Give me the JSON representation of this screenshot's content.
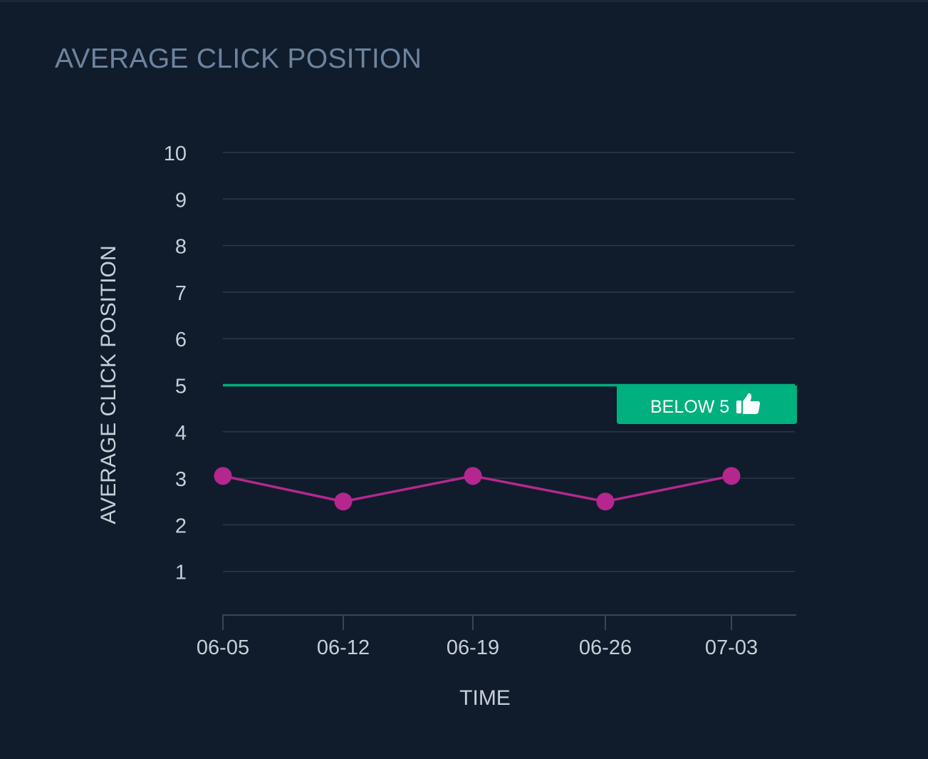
{
  "panel": {
    "title": "AVERAGE CLICK POSITION"
  },
  "chart_data": {
    "type": "line",
    "title": "",
    "xlabel": "TIME",
    "ylabel": "AVERAGE CLICK POSITION",
    "x": [
      "06-05",
      "06-12",
      "06-19",
      "06-26",
      "07-03"
    ],
    "series": [
      {
        "values": [
          3.05,
          2.5,
          3.05,
          2.5,
          3.05
        ],
        "color": "#b5278f"
      }
    ],
    "y_ticks": [
      1,
      2,
      3,
      4,
      5,
      6,
      7,
      8,
      9,
      10
    ],
    "ylim": [
      0,
      10
    ],
    "grid": true,
    "threshold": {
      "value": 5,
      "label": "BELOW 5",
      "icon": "thumbs-up-icon",
      "color": "#00b07e"
    }
  },
  "colors": {
    "background": "#101c2b",
    "title": "#6d84a0",
    "text": "#c7ced8",
    "grid": "#2c3848",
    "series": "#b5278f",
    "threshold": "#00b07e"
  }
}
